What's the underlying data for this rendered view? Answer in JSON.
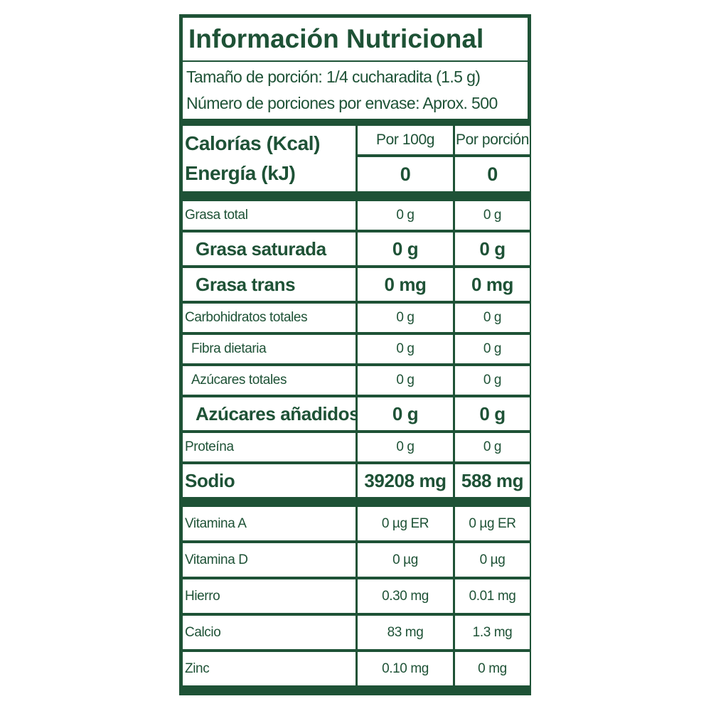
{
  "header": {
    "title": "Información Nutricional",
    "serving_size": "Tamaño de porción: 1/4 cucharadita (1.5 g)",
    "servings_per_container": "Número de porciones por envase: Aprox. 500"
  },
  "energy": {
    "labels": [
      "Calorías (Kcal)",
      "Energía (kJ)"
    ],
    "columns": [
      "Por 100g",
      "Por porción"
    ],
    "values": [
      "0",
      "0"
    ]
  },
  "table": {
    "rows": [
      [
        "Grasa total",
        "0 g",
        "0 g"
      ],
      [
        "Grasa saturada",
        "0 g",
        "0 g"
      ],
      [
        "Grasa trans",
        "0 mg",
        "0 mg"
      ],
      [
        "Carbohidratos totales",
        "0 g",
        "0 g"
      ],
      [
        "Fibra dietaria",
        "0 g",
        "0 g"
      ],
      [
        "Azúcares totales",
        "0 g",
        "0 g"
      ],
      [
        "Azúcares añadidos",
        "0 g",
        "0 g"
      ],
      [
        "Proteína",
        "0 g",
        "0 g"
      ],
      [
        "Sodio",
        "39208 mg",
        "588 mg"
      ],
      [
        "Vitamina A",
        "0 µg ER",
        "0 µg ER"
      ],
      [
        "Vitamina D",
        "0 µg",
        "0 µg"
      ],
      [
        "Hierro",
        "0.30 mg",
        "0.01 mg"
      ],
      [
        "Calcio",
        "83 mg",
        "1.3 mg"
      ],
      [
        "Zinc",
        "0.10 mg",
        "0 mg"
      ]
    ]
  }
}
